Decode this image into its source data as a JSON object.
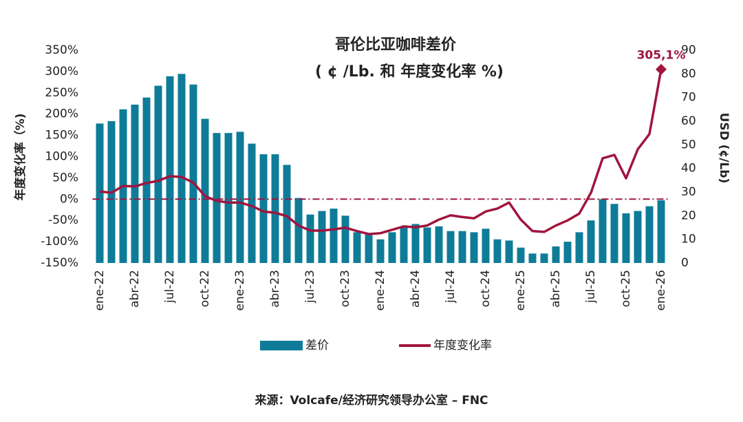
{
  "chart_data": {
    "type": "bar-line",
    "title": "哥伦比亚咖啡差价",
    "subtitle": "( ¢ /Lb. 和 年度变化率 %)",
    "y_label": "年度变化率（%)",
    "y2_label": "USD (¢/Lb)",
    "source": "来源：Volcafe/经济研究领导办公室 – FNC",
    "categories": [
      "ene-22",
      null,
      null,
      "abr-22",
      null,
      null,
      "jul-22",
      null,
      null,
      "oct-22",
      null,
      null,
      "ene-23",
      null,
      null,
      "abr-23",
      null,
      null,
      "jul-23",
      null,
      null,
      "oct-23",
      null,
      null,
      "ene-24",
      null,
      null,
      "abr-24",
      null,
      null,
      "jul-24",
      null,
      null,
      "oct-24",
      null,
      null,
      "ene-25",
      null,
      null,
      "abr-25",
      null,
      null,
      "jul-25",
      null,
      null,
      "oct-25",
      null,
      null,
      "ene-26"
    ],
    "series": [
      {
        "name": "差价",
        "type": "bar",
        "axis": "y2",
        "color": "#0e7c98",
        "values": [
          59,
          60,
          65,
          67,
          70,
          75,
          79,
          80,
          75.5,
          61,
          55,
          55,
          55.5,
          50.5,
          46,
          46,
          41.5,
          27.5,
          20.5,
          22,
          23,
          20,
          13,
          12,
          10,
          13,
          15,
          16.5,
          15,
          15.5,
          13.5,
          13.5,
          13,
          14.5,
          10,
          9.5,
          6.5,
          4,
          4,
          7,
          9,
          13,
          18,
          27,
          25,
          21,
          22,
          24,
          26.5
        ]
      },
      {
        "name": "年度变化率",
        "type": "line",
        "axis": "y",
        "color": "#a0153e",
        "values": [
          18,
          15,
          31,
          30,
          38,
          43,
          54,
          52,
          39,
          7,
          -4,
          -8,
          -8,
          -16,
          -29,
          -32,
          -40,
          -62,
          -74,
          -74,
          -71,
          -67,
          -75,
          -82,
          -80,
          -72,
          -64,
          -66,
          -62,
          -48,
          -38,
          -42,
          -45,
          -29,
          -22,
          -8,
          -48,
          -75,
          -77,
          -62,
          -50,
          -34,
          15,
          96,
          104,
          49,
          117,
          153,
          305.1
        ],
        "value_labels": [
          null,
          null,
          null,
          null,
          null,
          null,
          null,
          null,
          null,
          null,
          null,
          null,
          null,
          null,
          null,
          null,
          null,
          null,
          null,
          null,
          null,
          null,
          null,
          null,
          null,
          null,
          null,
          null,
          null,
          null,
          null,
          null,
          null,
          null,
          null,
          null,
          null,
          null,
          null,
          null,
          null,
          null,
          null,
          null,
          null,
          null,
          null,
          null,
          "305,1%"
        ]
      }
    ],
    "ylim": [
      -150,
      350
    ],
    "yticks": [
      {
        "value": -150,
        "label": "-150%"
      },
      {
        "value": -100,
        "label": "-100%"
      },
      {
        "value": -50,
        "label": "-50%"
      },
      {
        "value": 0,
        "label": "0%"
      },
      {
        "value": 50,
        "label": "50%"
      },
      {
        "value": 100,
        "label": "100%"
      },
      {
        "value": 150,
        "label": "150%"
      },
      {
        "value": 200,
        "label": "200%"
      },
      {
        "value": 250,
        "label": "250%"
      },
      {
        "value": 300,
        "label": "300%"
      },
      {
        "value": 350,
        "label": "350%"
      }
    ],
    "y2lim": [
      0,
      90
    ],
    "y2ticks": [
      0,
      10,
      20,
      30,
      40,
      50,
      60,
      70,
      80,
      90
    ],
    "reference_line": 0,
    "reference_color": "#a0153e",
    "grid": false
  }
}
